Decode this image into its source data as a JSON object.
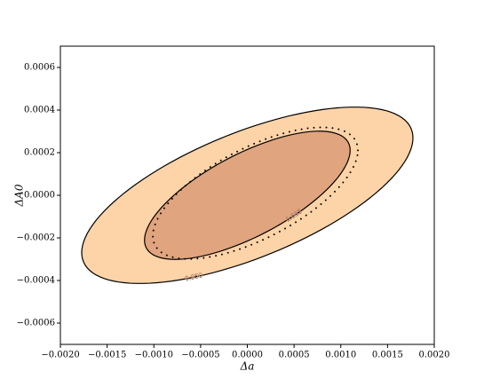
{
  "chart_data": {
    "type": "contour",
    "xlabel": "Δa",
    "ylabel": "ΔA0",
    "xlim": [
      -0.002,
      0.002
    ],
    "xticks": [
      {
        "value": -0.002,
        "label": "−0.0020"
      },
      {
        "value": -0.0015,
        "label": "−0.0015"
      },
      {
        "value": -0.001,
        "label": "−0.0010"
      },
      {
        "value": -0.0005,
        "label": "−0.0005"
      },
      {
        "value": 0,
        "label": "0.0000"
      },
      {
        "value": 0.0005,
        "label": "0.0005"
      },
      {
        "value": 0.001,
        "label": "0.0010"
      },
      {
        "value": 0.0015,
        "label": "0.0015"
      },
      {
        "value": 0.002,
        "label": "0.0020"
      }
    ],
    "ylim": [
      -0.0007,
      0.0007
    ],
    "yticks": [
      {
        "value": -0.0006,
        "label": "−0.0006"
      },
      {
        "value": -0.0004,
        "label": "−0.0004"
      },
      {
        "value": -0.0002,
        "label": "−0.0002"
      },
      {
        "value": 0,
        "label": "0.0000"
      },
      {
        "value": 0.0002,
        "label": "0.0002"
      },
      {
        "value": 0.0004,
        "label": "0.0004"
      },
      {
        "value": 0.0006,
        "label": "0.0006"
      }
    ],
    "ellipses": [
      {
        "label": "0.950",
        "color": "#fdd3a8",
        "style": "solid",
        "cx": 0,
        "cy": 0,
        "sx": 0.001772,
        "sy": 0.000414,
        "rho": 0.65
      },
      {
        "label": "0.683",
        "color": "#e0a47e",
        "style": "solid",
        "cx": 0,
        "cy": 0,
        "sx": 0.0011,
        "sy": 0.000301,
        "rho": 0.7
      },
      {
        "style": "dotted",
        "cx": 8.6e-05,
        "cy": 1e-05,
        "sx": 0.001097,
        "sy": 0.000309,
        "rho": 0.65
      }
    ]
  }
}
